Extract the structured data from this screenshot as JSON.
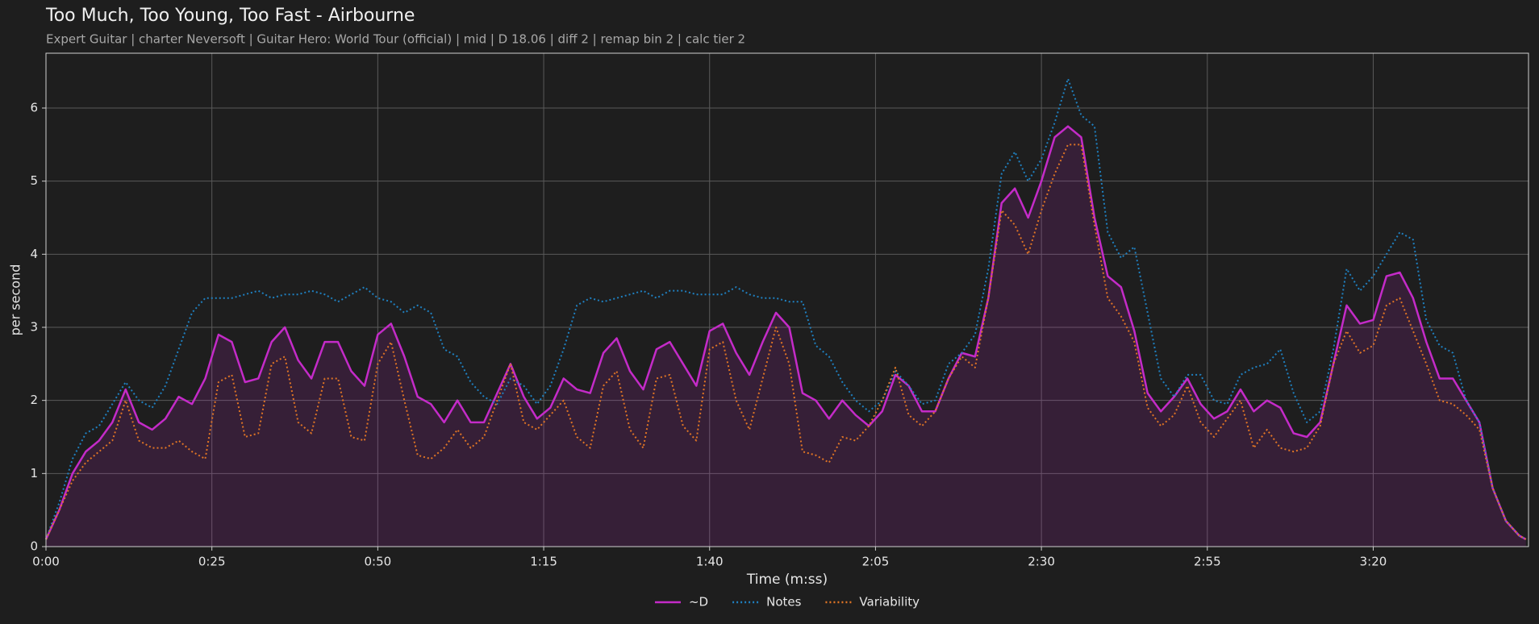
{
  "chart_data": {
    "type": "line",
    "title": "Too Much, Too Young, Too Fast - Airbourne",
    "subtitle": "Expert Guitar  |  charter Neversoft  |  Guitar Hero: World Tour (official)  |  mid  |  D 18.06  |  diff 2  |  remap bin 2  |  calc tier 2",
    "x_label": "Time (m:ss)",
    "y_label": "per second",
    "xlim": [
      0,
      223.4
    ],
    "ylim": [
      0,
      6.75
    ],
    "xticks": [
      {
        "value": 0,
        "label": "0:00"
      },
      {
        "value": 25,
        "label": "0:25"
      },
      {
        "value": 50,
        "label": "0:50"
      },
      {
        "value": 75,
        "label": "1:15"
      },
      {
        "value": 100,
        "label": "1:40"
      },
      {
        "value": 125,
        "label": "2:05"
      },
      {
        "value": 150,
        "label": "2:30"
      },
      {
        "value": 175,
        "label": "2:55"
      },
      {
        "value": 200,
        "label": "3:20"
      }
    ],
    "yticks": [
      0,
      1,
      2,
      3,
      4,
      5,
      6
    ],
    "grid": true,
    "legend": "bottom-center",
    "x": [
      0,
      2,
      4,
      6,
      8,
      10,
      12,
      14,
      16,
      18,
      20,
      22,
      24,
      26,
      28,
      30,
      32,
      34,
      36,
      38,
      40,
      42,
      44,
      46,
      48,
      50,
      52,
      54,
      56,
      58,
      60,
      62,
      64,
      66,
      68,
      70,
      72,
      74,
      76,
      78,
      80,
      82,
      84,
      86,
      88,
      90,
      92,
      94,
      96,
      98,
      100,
      102,
      104,
      106,
      108,
      110,
      112,
      114,
      116,
      118,
      120,
      122,
      124,
      126,
      128,
      130,
      132,
      134,
      136,
      138,
      140,
      142,
      144,
      146,
      148,
      150,
      152,
      154,
      156,
      158,
      160,
      162,
      164,
      166,
      168,
      170,
      172,
      174,
      176,
      178,
      180,
      182,
      184,
      186,
      188,
      190,
      192,
      194,
      196,
      198,
      200,
      202,
      204,
      206,
      208,
      210,
      212,
      214,
      216,
      218,
      220,
      222,
      223
    ],
    "series": [
      {
        "name": "~D",
        "color": "#c42bc8",
        "style": "solid",
        "fill": true,
        "values": [
          0.1,
          0.5,
          1.0,
          1.3,
          1.45,
          1.7,
          2.15,
          1.7,
          1.6,
          1.75,
          2.05,
          1.95,
          2.3,
          2.9,
          2.8,
          2.25,
          2.3,
          2.8,
          3.0,
          2.55,
          2.3,
          2.8,
          2.8,
          2.4,
          2.2,
          2.9,
          3.05,
          2.6,
          2.05,
          1.95,
          1.7,
          2.0,
          1.7,
          1.7,
          2.1,
          2.5,
          2.05,
          1.75,
          1.9,
          2.3,
          2.15,
          2.1,
          2.65,
          2.85,
          2.4,
          2.15,
          2.7,
          2.8,
          2.5,
          2.2,
          2.95,
          3.05,
          2.65,
          2.35,
          2.8,
          3.2,
          3.0,
          2.1,
          2.0,
          1.75,
          2.0,
          1.8,
          1.65,
          1.85,
          2.35,
          2.2,
          1.85,
          1.85,
          2.3,
          2.65,
          2.6,
          3.4,
          4.7,
          4.9,
          4.5,
          5.0,
          5.6,
          5.75,
          5.6,
          4.5,
          3.7,
          3.55,
          2.95,
          2.1,
          1.85,
          2.05,
          2.3,
          1.95,
          1.75,
          1.85,
          2.15,
          1.85,
          2.0,
          1.9,
          1.55,
          1.5,
          1.7,
          2.5,
          3.3,
          3.05,
          3.1,
          3.7,
          3.75,
          3.4,
          2.8,
          2.3,
          2.3,
          2.0,
          1.7,
          0.8,
          0.35,
          0.15,
          0.1
        ]
      },
      {
        "name": "Notes",
        "color": "#1f80c0",
        "style": "dotted",
        "fill": false,
        "values": [
          0.1,
          0.6,
          1.2,
          1.55,
          1.65,
          1.95,
          2.25,
          2.0,
          1.9,
          2.2,
          2.7,
          3.2,
          3.4,
          3.4,
          3.4,
          3.45,
          3.5,
          3.4,
          3.45,
          3.45,
          3.5,
          3.45,
          3.35,
          3.45,
          3.55,
          3.4,
          3.35,
          3.2,
          3.3,
          3.2,
          2.7,
          2.6,
          2.25,
          2.05,
          1.95,
          2.3,
          2.2,
          1.95,
          2.2,
          2.7,
          3.3,
          3.4,
          3.35,
          3.4,
          3.45,
          3.5,
          3.4,
          3.5,
          3.5,
          3.45,
          3.45,
          3.45,
          3.55,
          3.45,
          3.4,
          3.4,
          3.35,
          3.35,
          2.75,
          2.6,
          2.25,
          2.0,
          1.85,
          2.0,
          2.4,
          2.2,
          1.95,
          2.0,
          2.5,
          2.65,
          2.9,
          3.8,
          5.1,
          5.4,
          5.0,
          5.3,
          5.8,
          6.4,
          5.9,
          5.75,
          4.3,
          3.95,
          4.1,
          3.2,
          2.3,
          2.05,
          2.35,
          2.35,
          2.0,
          1.95,
          2.35,
          2.45,
          2.5,
          2.7,
          2.1,
          1.7,
          1.85,
          2.7,
          3.8,
          3.5,
          3.7,
          4.0,
          4.3,
          4.2,
          3.1,
          2.75,
          2.65,
          2.0,
          1.7,
          0.8,
          0.35,
          0.15,
          0.1
        ]
      },
      {
        "name": "Variability",
        "color": "#e07525",
        "style": "dotted",
        "fill": false,
        "values": [
          0.1,
          0.5,
          0.9,
          1.15,
          1.3,
          1.45,
          2.0,
          1.45,
          1.35,
          1.35,
          1.45,
          1.3,
          1.2,
          2.25,
          2.35,
          1.5,
          1.55,
          2.5,
          2.6,
          1.7,
          1.55,
          2.3,
          2.3,
          1.5,
          1.45,
          2.5,
          2.8,
          2.0,
          1.25,
          1.2,
          1.35,
          1.6,
          1.35,
          1.5,
          2.0,
          2.5,
          1.7,
          1.6,
          1.8,
          2.0,
          1.5,
          1.35,
          2.2,
          2.4,
          1.6,
          1.35,
          2.3,
          2.35,
          1.65,
          1.45,
          2.7,
          2.8,
          2.0,
          1.6,
          2.3,
          3.0,
          2.5,
          1.3,
          1.25,
          1.15,
          1.5,
          1.45,
          1.65,
          2.0,
          2.45,
          1.8,
          1.65,
          1.85,
          2.3,
          2.6,
          2.45,
          3.4,
          4.6,
          4.4,
          4.0,
          4.6,
          5.1,
          5.5,
          5.5,
          4.4,
          3.4,
          3.15,
          2.8,
          1.9,
          1.65,
          1.8,
          2.2,
          1.7,
          1.5,
          1.75,
          2.0,
          1.35,
          1.6,
          1.35,
          1.3,
          1.35,
          1.65,
          2.5,
          2.95,
          2.65,
          2.75,
          3.3,
          3.4,
          2.95,
          2.5,
          2.0,
          1.95,
          1.8,
          1.6,
          0.8,
          0.35,
          0.15,
          0.1
        ]
      }
    ]
  }
}
